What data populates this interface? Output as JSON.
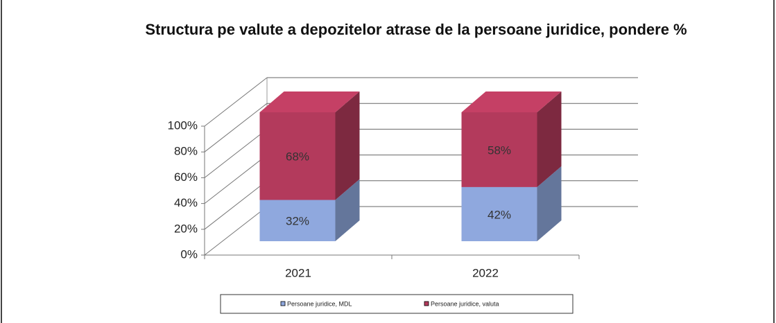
{
  "chart_data": {
    "type": "bar3d_stacked",
    "title": "Structura pe valute a depozitelor atrase de la persoane juridice, pondere %",
    "categories": [
      "2021",
      "2022"
    ],
    "series": [
      {
        "name": "Persoane juridice, MDL",
        "color": "#8fa8de",
        "values": [
          32,
          42
        ],
        "value_labels": [
          "32%",
          "42%"
        ]
      },
      {
        "name": "Persoane juridice, valuta",
        "color": "#b33a5c",
        "values": [
          68,
          58
        ],
        "value_labels": [
          "68%",
          "58%"
        ]
      }
    ],
    "ylim": [
      0,
      100
    ],
    "yticks": [
      {
        "value": 0,
        "label": "0%"
      },
      {
        "value": 20,
        "label": "20%"
      },
      {
        "value": 40,
        "label": "40%"
      },
      {
        "value": 60,
        "label": "60%"
      },
      {
        "value": 80,
        "label": "80%"
      },
      {
        "value": 100,
        "label": "100%"
      }
    ],
    "grid": true,
    "legend": "bottom"
  }
}
